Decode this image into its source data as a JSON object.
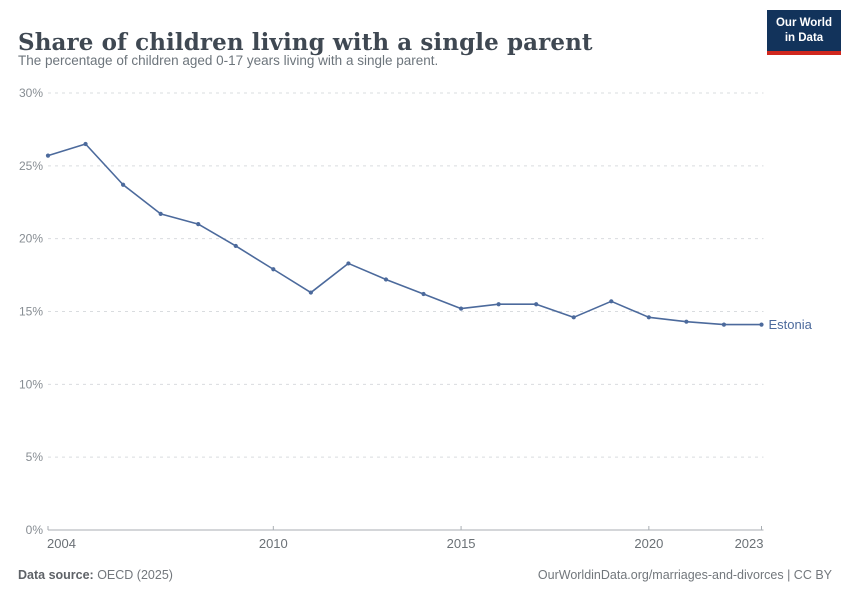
{
  "header": {
    "title": "Share of children living with a single parent",
    "subtitle": "The percentage of children aged 0-17 years living with a single parent.",
    "logo": {
      "line1": "Our World",
      "line2": "in Data"
    }
  },
  "chart_data": {
    "type": "line",
    "title": "Share of children living with a single parent",
    "entity": "Estonia",
    "unit": "%",
    "x": [
      2004,
      2005,
      2006,
      2007,
      2008,
      2009,
      2010,
      2011,
      2012,
      2013,
      2014,
      2015,
      2016,
      2017,
      2018,
      2019,
      2020,
      2021,
      2022,
      2023
    ],
    "values": [
      25.7,
      26.5,
      23.7,
      21.7,
      21.0,
      19.5,
      17.9,
      16.3,
      18.3,
      17.2,
      16.2,
      15.2,
      15.5,
      15.5,
      14.6,
      15.7,
      14.6,
      14.3,
      14.1,
      14.1
    ],
    "ylim": [
      0,
      30
    ],
    "yticks": [
      0,
      5,
      10,
      15,
      20,
      25,
      30
    ],
    "ytick_suffix": "%",
    "xticks": [
      2004,
      2010,
      2015,
      2020,
      2023
    ],
    "grid": "horizontal-dashed",
    "legend_position": "end-of-line",
    "line_color": "#4c6a9c"
  },
  "footer": {
    "source_label": "Data source:",
    "source_value": " OECD (2025)",
    "citation": "OurWorldinData.org/marriages-and-divorces | CC BY"
  },
  "colors": {
    "accent_line": "#4c6a9c",
    "grid": "#d9dcdf",
    "axis": "#a9aeb3",
    "ytick_text": "#878d93",
    "xtick_text": "#6b7176",
    "title_text": "#3f4852",
    "subtitle_text": "#6d757c",
    "logo_bg": "#12335b",
    "logo_red": "#d0271e"
  }
}
